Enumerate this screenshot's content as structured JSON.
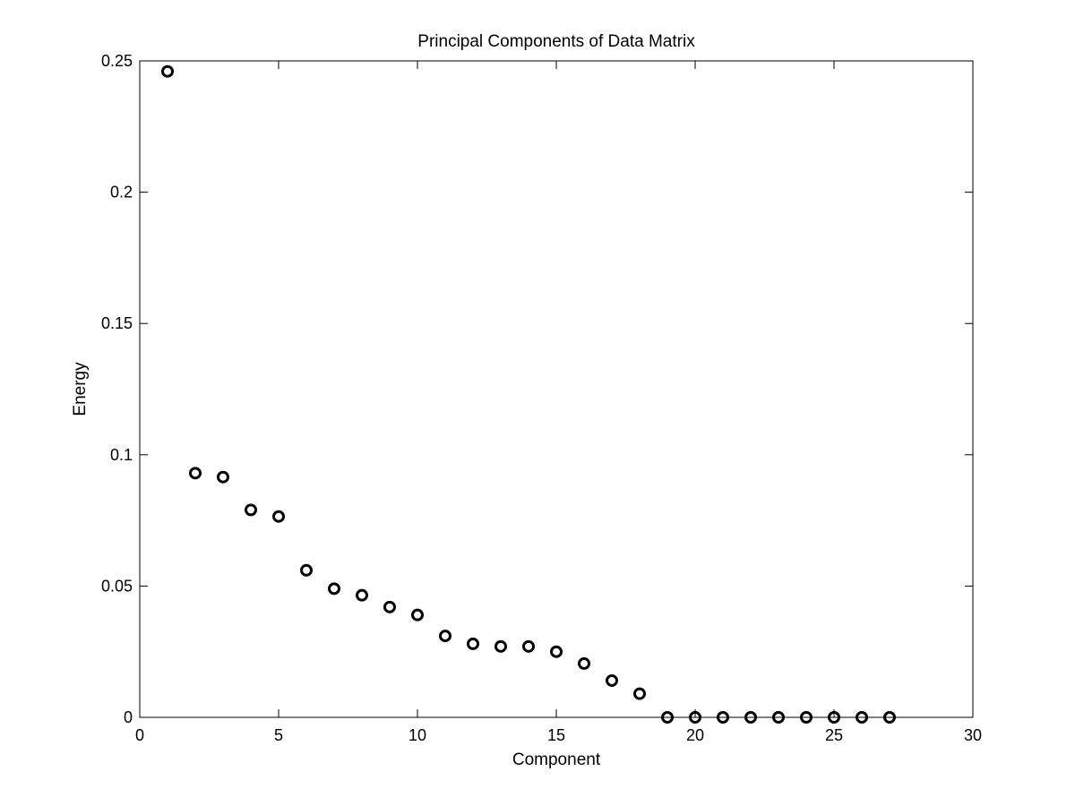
{
  "chart_data": {
    "type": "scatter",
    "title": "Principal Components of Data Matrix",
    "xlabel": "Component",
    "ylabel": "Energy",
    "xlim": [
      0,
      30
    ],
    "ylim": [
      0,
      0.25
    ],
    "xticks": [
      0,
      5,
      10,
      15,
      20,
      25,
      30
    ],
    "yticks": [
      0,
      0.05,
      0.1,
      0.15,
      0.2,
      0.25
    ],
    "xtick_labels": [
      "0",
      "5",
      "10",
      "15",
      "20",
      "25",
      "30"
    ],
    "ytick_labels": [
      "0",
      "0.05",
      "0.1",
      "0.15",
      "0.2",
      "0.25"
    ],
    "grid": false,
    "marker": "circle-open",
    "series": [
      {
        "name": "Energy",
        "color": "#000000",
        "x": [
          1,
          2,
          3,
          4,
          5,
          6,
          7,
          8,
          9,
          10,
          11,
          12,
          13,
          14,
          15,
          16,
          17,
          18,
          19,
          20,
          21,
          22,
          23,
          24,
          25,
          26,
          27
        ],
        "y": [
          0.246,
          0.093,
          0.0915,
          0.079,
          0.0765,
          0.056,
          0.049,
          0.0465,
          0.042,
          0.039,
          0.031,
          0.028,
          0.027,
          0.027,
          0.025,
          0.0205,
          0.014,
          0.009,
          0,
          0,
          0,
          0,
          0,
          0,
          0,
          0,
          0
        ]
      }
    ]
  }
}
